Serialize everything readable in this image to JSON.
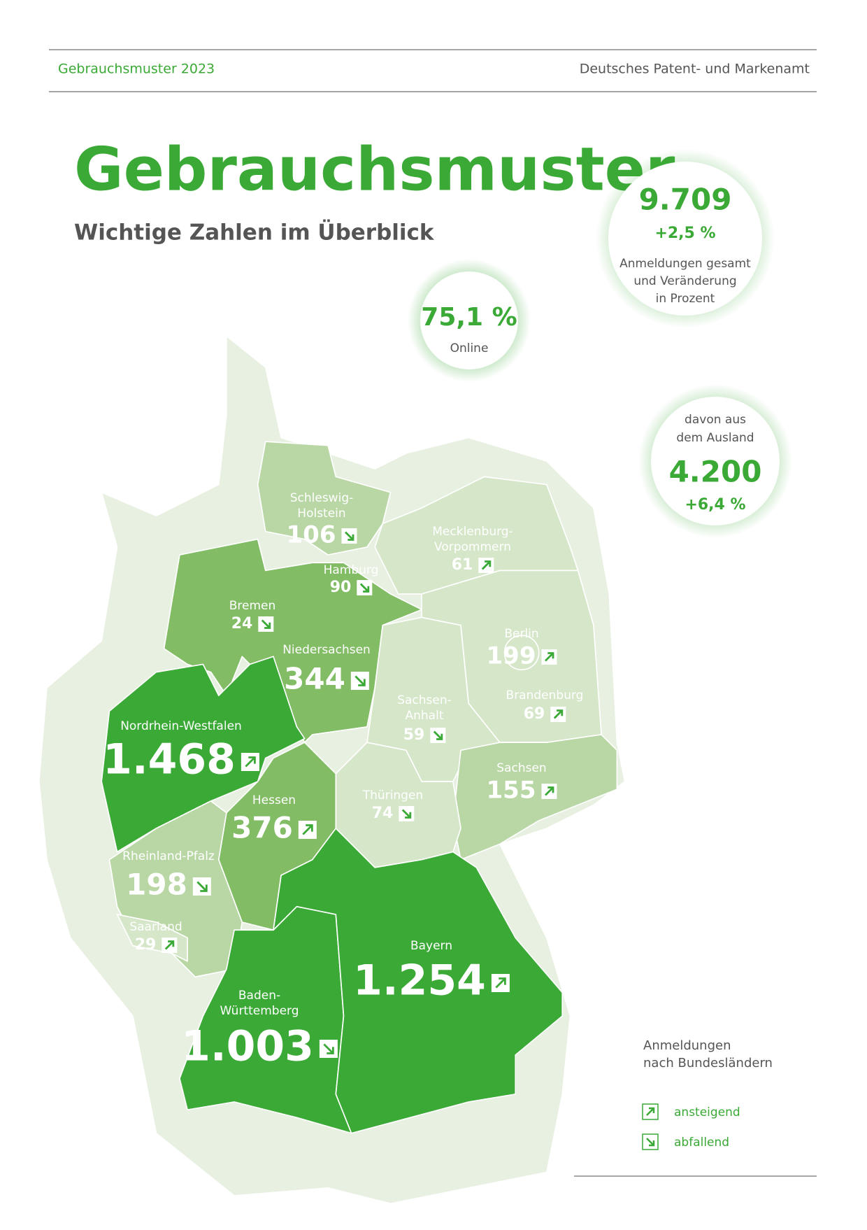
{
  "header": {
    "left": "Gebrauchsmuster 2023",
    "right": "Deutsches Patent- und Markenamt"
  },
  "title": "Gebrauchsmuster",
  "subtitle": "Wichtige Zahlen im Überblick",
  "total": {
    "value": "9.709",
    "change": "+2,5 %",
    "label": [
      "Anmeldungen gesamt",
      "und Veränderung",
      "in Prozent"
    ]
  },
  "online": {
    "value": "75,1 %",
    "label": "Online"
  },
  "foreign": {
    "label": [
      "davon aus",
      "dem Ausland"
    ],
    "value": "4.200",
    "change": "+6,4 %"
  },
  "states": [
    {
      "name": [
        "Schleswig-",
        "Holstein"
      ],
      "value": "106",
      "trend": "down"
    },
    {
      "name": [
        "Hamburg"
      ],
      "value": "90",
      "trend": "down"
    },
    {
      "name": [
        "Mecklenburg-",
        "Vorpommern"
      ],
      "value": "61",
      "trend": "up"
    },
    {
      "name": [
        "Bremen"
      ],
      "value": "24",
      "trend": "down"
    },
    {
      "name": [
        "Niedersachsen"
      ],
      "value": "344",
      "trend": "down"
    },
    {
      "name": [
        "Berlin"
      ],
      "value": "199",
      "trend": "up"
    },
    {
      "name": [
        "Brandenburg"
      ],
      "value": "69",
      "trend": "up"
    },
    {
      "name": [
        "Sachsen-",
        "Anhalt"
      ],
      "value": "59",
      "trend": "down"
    },
    {
      "name": [
        "Nordrhein-Westfalen"
      ],
      "value": "1.468",
      "trend": "up"
    },
    {
      "name": [
        "Sachsen"
      ],
      "value": "155",
      "trend": "up"
    },
    {
      "name": [
        "Hessen"
      ],
      "value": "376",
      "trend": "up"
    },
    {
      "name": [
        "Thüringen"
      ],
      "value": "74",
      "trend": "down"
    },
    {
      "name": [
        "Rheinland-Pfalz"
      ],
      "value": "198",
      "trend": "down"
    },
    {
      "name": [
        "Saarland"
      ],
      "value": "29",
      "trend": "up"
    },
    {
      "name": [
        "Bayern"
      ],
      "value": "1.254",
      "trend": "up"
    },
    {
      "name": [
        "Baden-",
        "Württemberg"
      ],
      "value": "1.003",
      "trend": "down"
    }
  ],
  "legend": {
    "title": [
      "Anmeldungen",
      "nach Bundesländern"
    ],
    "up": "ansteigend",
    "down": "abfallend"
  }
}
